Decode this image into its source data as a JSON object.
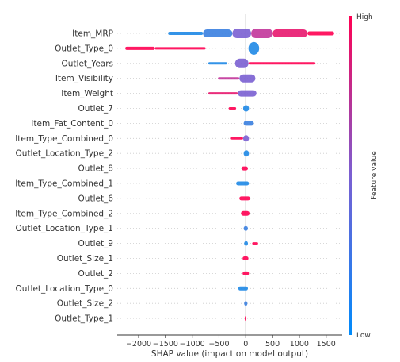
{
  "chart_data": {
    "type": "scatter",
    "subtype": "shap-beeswarm-summary",
    "title": "",
    "xlabel": "SHAP value (impact on model output)",
    "ylabel": "",
    "xlim": [
      -2400,
      1800
    ],
    "x_ticks": [
      -2000,
      -1500,
      -1000,
      -500,
      0,
      500,
      1000,
      1500
    ],
    "x_tick_labels": [
      "−2000",
      "−1500",
      "−1000",
      "−500",
      "0",
      "500",
      "1000",
      "1500"
    ],
    "grid": false,
    "colorbar": {
      "label": "Feature value",
      "high_label": "High",
      "low_label": "Low",
      "high_color": "#ff0052",
      "low_color": "#008bfb"
    },
    "features": [
      {
        "name": "Item_MRP",
        "segments": [
          {
            "from": -1450,
            "to": -800,
            "color": "#1e88e5",
            "width": 4
          },
          {
            "from": -800,
            "to": -250,
            "color": "#3a7fe0",
            "width": 10
          },
          {
            "from": -250,
            "to": 100,
            "color": "#7a5fd2",
            "width": 12
          },
          {
            "from": 100,
            "to": 500,
            "color": "#c2359a",
            "width": 12
          },
          {
            "from": 500,
            "to": 1150,
            "color": "#e8176e",
            "width": 10
          },
          {
            "from": 1150,
            "to": 1650,
            "color": "#ff0052",
            "width": 5
          }
        ]
      },
      {
        "name": "Outlet_Type_0",
        "segments": [
          {
            "from": -2250,
            "to": -1700,
            "color": "#ff0052",
            "width": 4
          },
          {
            "from": -1700,
            "to": -750,
            "color": "#ff0052",
            "width": 3
          },
          {
            "from": 50,
            "to": 250,
            "color": "#1e88e5",
            "width": 16
          }
        ]
      },
      {
        "name": "Outlet_Years",
        "segments": [
          {
            "from": -700,
            "to": -350,
            "color": "#1e88e5",
            "width": 3
          },
          {
            "from": -200,
            "to": 50,
            "color": "#7a5fd2",
            "width": 12
          },
          {
            "from": 50,
            "to": 1300,
            "color": "#ff0052",
            "width": 3
          }
        ]
      },
      {
        "name": "Item_Visibility",
        "segments": [
          {
            "from": -520,
            "to": -120,
            "color": "#c2359a",
            "width": 3
          },
          {
            "from": -120,
            "to": 180,
            "color": "#7a5fd2",
            "width": 10
          }
        ]
      },
      {
        "name": "Item_Weight",
        "segments": [
          {
            "from": -700,
            "to": -150,
            "color": "#e8176e",
            "width": 3
          },
          {
            "from": -150,
            "to": 200,
            "color": "#7a5fd2",
            "width": 8
          }
        ]
      },
      {
        "name": "Outlet_7",
        "segments": [
          {
            "from": -320,
            "to": -180,
            "color": "#ff0052",
            "width": 3
          },
          {
            "from": -50,
            "to": 60,
            "color": "#1e88e5",
            "width": 8
          }
        ]
      },
      {
        "name": "Item_Fat_Content_0",
        "segments": [
          {
            "from": -40,
            "to": 150,
            "color": "#3a7fe0",
            "width": 6
          }
        ]
      },
      {
        "name": "Item_Type_Combined_0",
        "segments": [
          {
            "from": -280,
            "to": -50,
            "color": "#ff0052",
            "width": 3
          },
          {
            "from": -50,
            "to": 60,
            "color": "#7a5fd2",
            "width": 8
          }
        ]
      },
      {
        "name": "Outlet_Location_Type_2",
        "segments": [
          {
            "from": -40,
            "to": 60,
            "color": "#1e88e5",
            "width": 8
          }
        ]
      },
      {
        "name": "Outlet_8",
        "segments": [
          {
            "from": -80,
            "to": 40,
            "color": "#ff0052",
            "width": 5
          }
        ]
      },
      {
        "name": "Item_Type_Combined_1",
        "segments": [
          {
            "from": -180,
            "to": 60,
            "color": "#1e88e5",
            "width": 5
          }
        ]
      },
      {
        "name": "Outlet_6",
        "segments": [
          {
            "from": -120,
            "to": 80,
            "color": "#ff0052",
            "width": 5
          }
        ]
      },
      {
        "name": "Item_Type_Combined_2",
        "segments": [
          {
            "from": -90,
            "to": 70,
            "color": "#ff0052",
            "width": 6
          }
        ]
      },
      {
        "name": "Outlet_Location_Type_1",
        "segments": [
          {
            "from": -40,
            "to": 40,
            "color": "#3a7fe0",
            "width": 6
          }
        ]
      },
      {
        "name": "Outlet_9",
        "segments": [
          {
            "from": -30,
            "to": 40,
            "color": "#1e88e5",
            "width": 6
          },
          {
            "from": 120,
            "to": 230,
            "color": "#ff0052",
            "width": 3
          }
        ]
      },
      {
        "name": "Outlet_Size_1",
        "segments": [
          {
            "from": -60,
            "to": 50,
            "color": "#ff0052",
            "width": 5
          }
        ]
      },
      {
        "name": "Outlet_2",
        "segments": [
          {
            "from": -60,
            "to": 60,
            "color": "#ff0052",
            "width": 5
          }
        ]
      },
      {
        "name": "Outlet_Location_Type_0",
        "segments": [
          {
            "from": -140,
            "to": 40,
            "color": "#1e88e5",
            "width": 5
          }
        ]
      },
      {
        "name": "Outlet_Size_2",
        "segments": [
          {
            "from": -30,
            "to": 30,
            "color": "#3a7fe0",
            "width": 6
          }
        ]
      },
      {
        "name": "Outlet_Type_1",
        "segments": [
          {
            "from": -20,
            "to": 10,
            "color": "#ff0052",
            "width": 6
          }
        ]
      }
    ]
  }
}
